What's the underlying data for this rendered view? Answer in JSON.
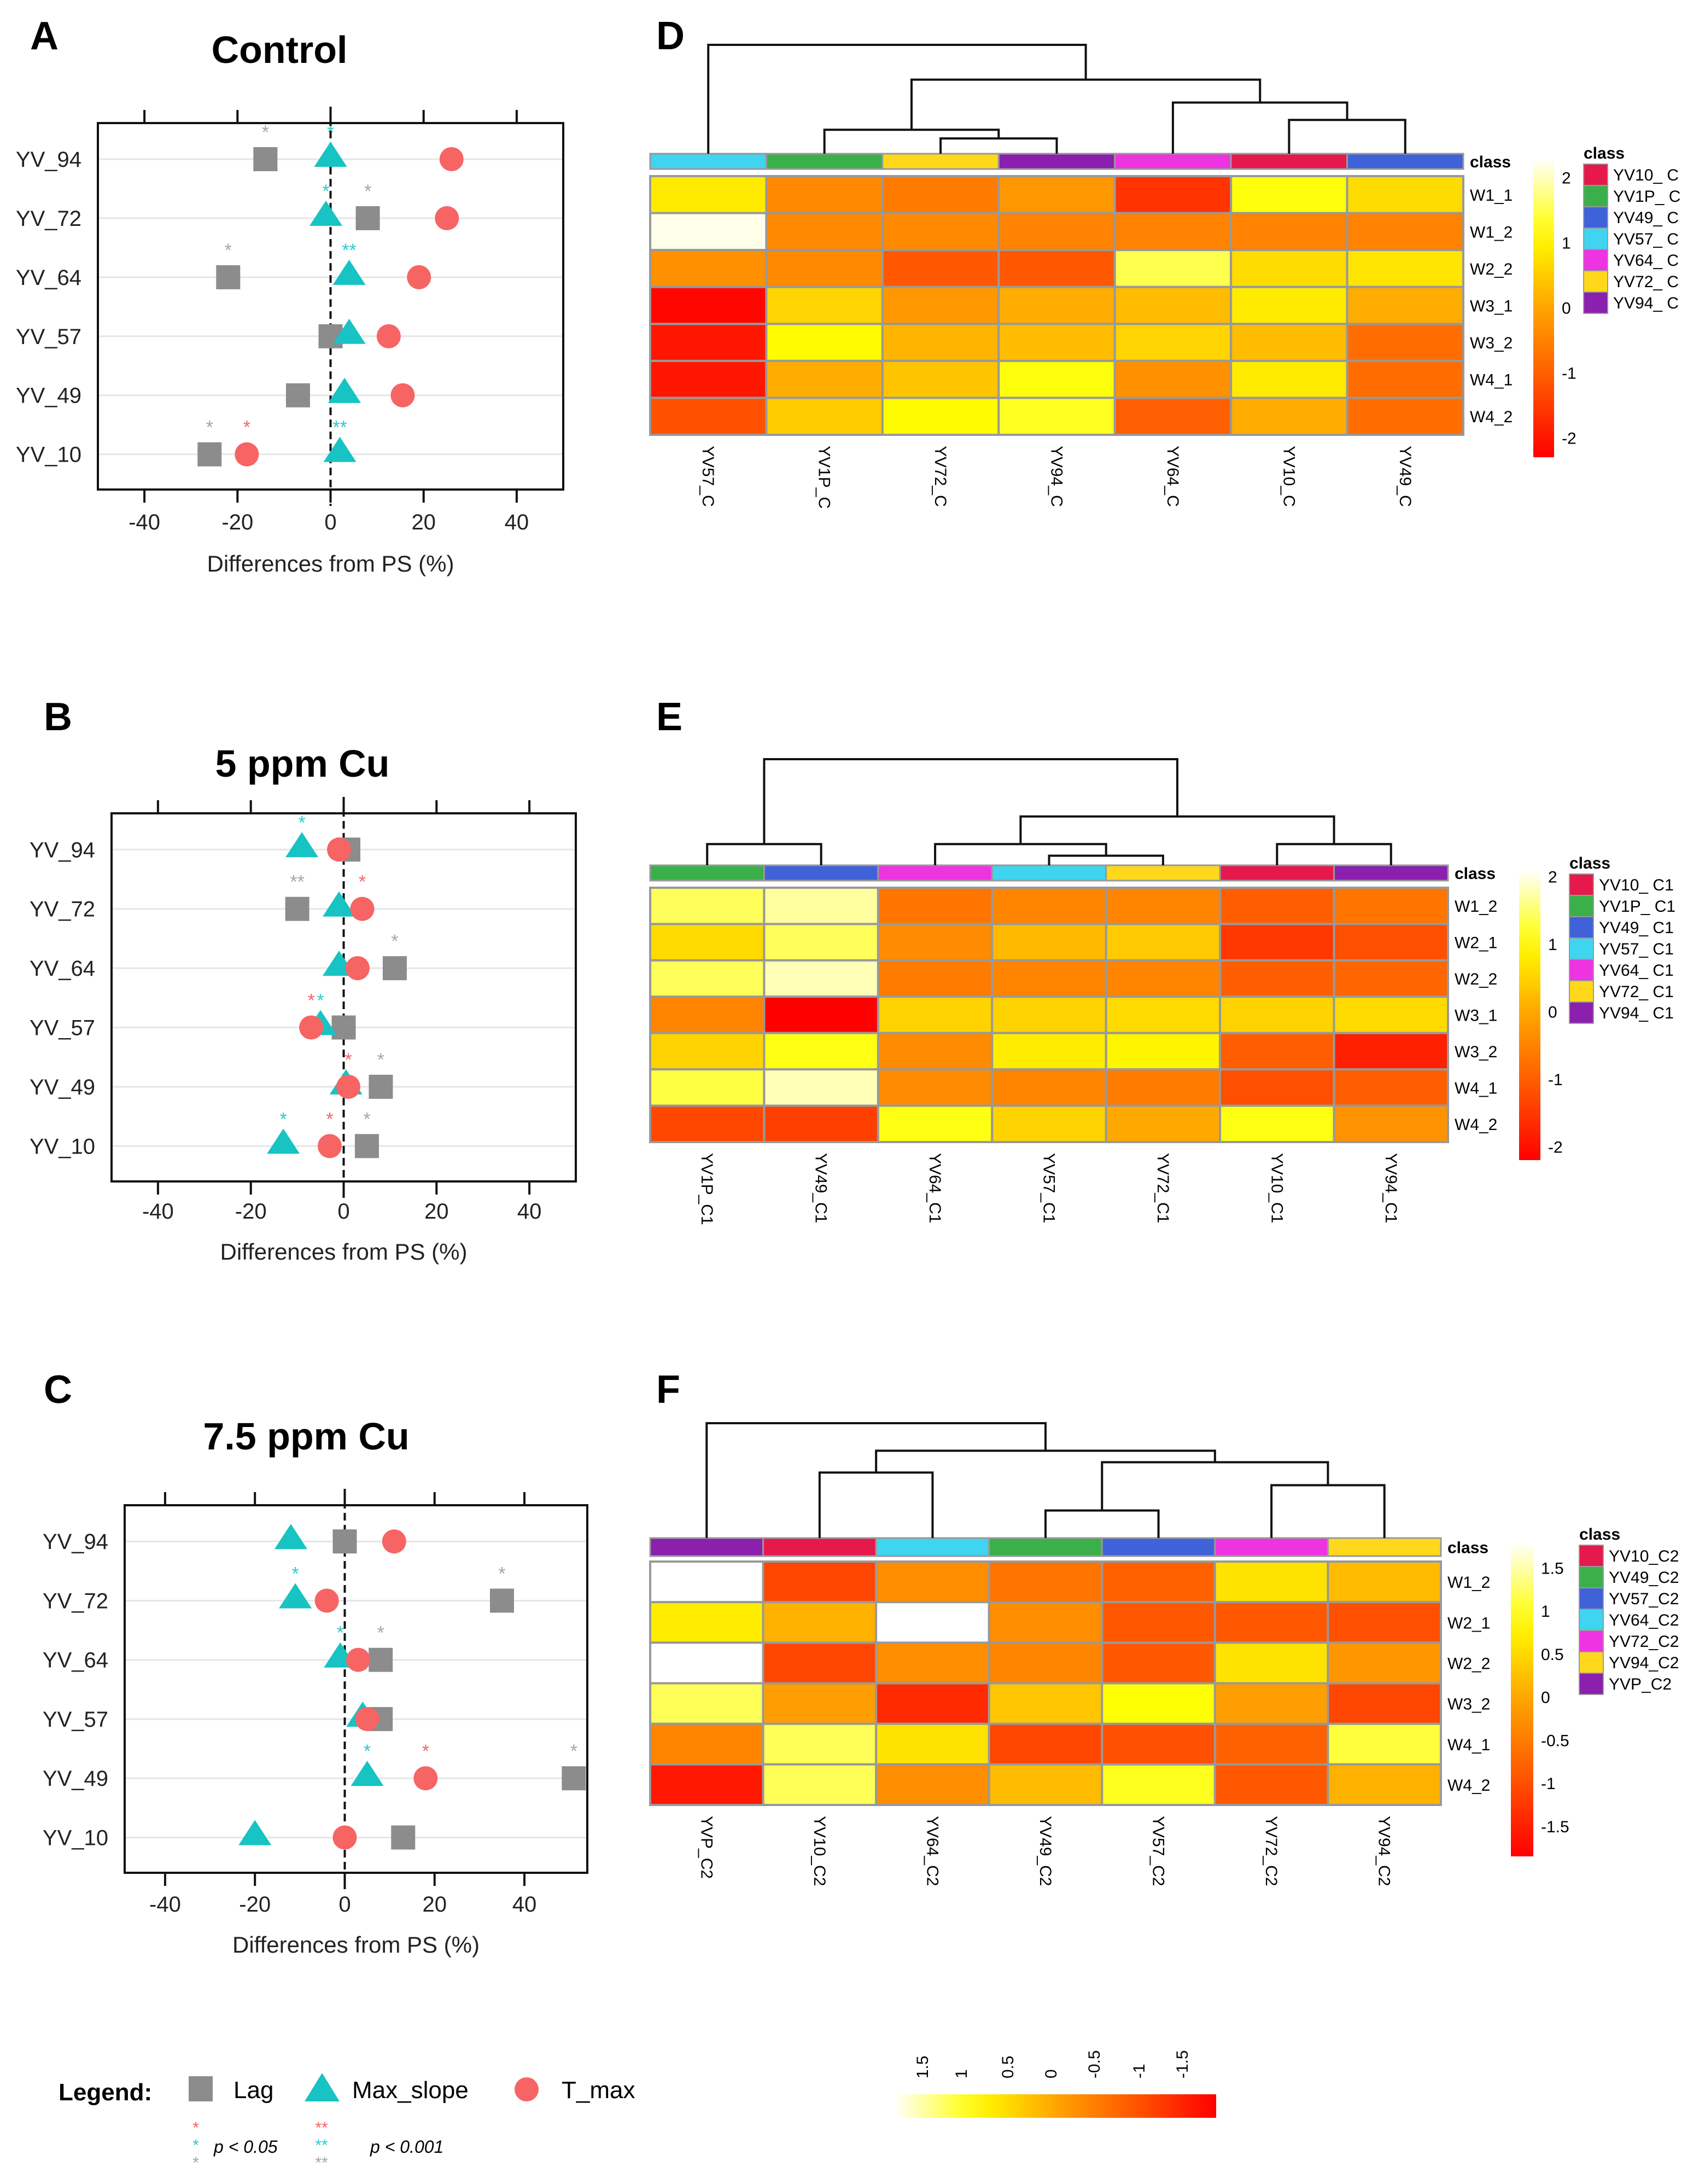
{
  "chart_data": [
    {
      "type": "scatter",
      "panel": "A",
      "title": "Control",
      "xlabel": "Differences from PS (%)",
      "xlim": [
        -50,
        50
      ],
      "xticks": [
        "-40",
        "-20",
        "0",
        "20",
        "40"
      ],
      "tick_values": [
        -40,
        -20,
        0,
        20,
        40
      ],
      "categories": [
        "YV_94",
        "YV_72",
        "YV_64",
        "YV_57",
        "YV_49",
        "YV_10"
      ],
      "series": [
        {
          "name": "Lag",
          "values": [
            -14,
            8,
            -22,
            0,
            -7,
            -26
          ],
          "sig": [
            "*",
            "*",
            "*",
            "",
            "",
            "*"
          ]
        },
        {
          "name": "Max_slope",
          "values": [
            0,
            -1,
            4,
            4,
            3,
            2
          ],
          "sig": [
            "*",
            "*",
            "**",
            "",
            "",
            "**"
          ]
        },
        {
          "name": "T_max",
          "values": [
            26,
            25,
            19,
            12.5,
            15.5,
            -18
          ],
          "sig": [
            "",
            "",
            "",
            "",
            "",
            "*"
          ]
        }
      ]
    },
    {
      "type": "scatter",
      "panel": "B",
      "title": "5 ppm Cu",
      "xlabel": "Differences from PS (%)",
      "xlim": [
        -50,
        50
      ],
      "xticks": [
        "-40",
        "-20",
        "0",
        "20",
        "40"
      ],
      "tick_values": [
        -40,
        -20,
        0,
        20,
        40
      ],
      "categories": [
        "YV_94",
        "YV_72",
        "YV_64",
        "YV_57",
        "YV_49",
        "YV_10"
      ],
      "series": [
        {
          "name": "Lag",
          "values": [
            1,
            -10,
            11,
            0,
            8,
            5
          ],
          "sig": [
            "",
            "**",
            "*",
            "",
            "*",
            "*"
          ]
        },
        {
          "name": "Max_slope",
          "values": [
            -9,
            -1,
            -1,
            -5,
            0.5,
            -13
          ],
          "sig": [
            "*",
            "",
            "",
            "*",
            "",
            "*"
          ]
        },
        {
          "name": "T_max",
          "values": [
            -1,
            4,
            3,
            -7,
            1,
            -3
          ],
          "sig": [
            "",
            "*",
            "",
            "*",
            "*",
            "*"
          ]
        }
      ]
    },
    {
      "type": "scatter",
      "panel": "C",
      "title": "7.5 ppm Cu",
      "xlabel": "Differences from PS (%)",
      "xlim": [
        -49,
        54
      ],
      "xticks": [
        "-40",
        "-20",
        "0",
        "20",
        "40"
      ],
      "tick_values": [
        -40,
        -20,
        0,
        20,
        40
      ],
      "categories": [
        "YV_94",
        "YV_72",
        "YV_64",
        "YV_57",
        "YV_49",
        "YV_10"
      ],
      "series": [
        {
          "name": "Lag",
          "values": [
            0,
            35,
            8,
            8,
            51,
            13
          ],
          "sig": [
            "",
            "*",
            "*",
            "",
            "*",
            ""
          ]
        },
        {
          "name": "Max_slope",
          "values": [
            -12,
            -11,
            -1,
            4,
            5,
            -20
          ],
          "sig": [
            "",
            "*",
            "*",
            "",
            "*",
            ""
          ]
        },
        {
          "name": "T_max",
          "values": [
            11,
            -4,
            3,
            5,
            18,
            0
          ],
          "sig": [
            "",
            "",
            "",
            "",
            "*",
            ""
          ]
        }
      ]
    },
    {
      "type": "heatmap",
      "panel": "D",
      "columns": [
        "YV57_C",
        "YV1P_C",
        "YV72_C",
        "YV94_C",
        "YV64_C",
        "YV10_C",
        "YV49_C"
      ],
      "rows": [
        "W1_1",
        "W1_2",
        "W2_2",
        "W3_1",
        "W3_2",
        "W4_1",
        "W4_2"
      ],
      "values": [
        [
          0.9,
          -0.4,
          -0.6,
          -0.2,
          -1.6,
          1.2,
          0.7
        ],
        [
          2.2,
          -0.4,
          -0.4,
          -0.5,
          -0.5,
          -0.5,
          -0.5
        ],
        [
          -0.3,
          -0.4,
          -1.1,
          -1.1,
          1.5,
          0.7,
          0.8
        ],
        [
          -2.2,
          0.6,
          -0.2,
          0.1,
          0.3,
          0.9,
          0.1
        ],
        [
          -2.0,
          1.1,
          0.2,
          0.3,
          0.6,
          0.3,
          -0.8
        ],
        [
          -2.0,
          0.1,
          0.4,
          1.2,
          -0.3,
          0.9,
          -0.8
        ],
        [
          -1.2,
          0.5,
          1.1,
          1.3,
          -1.0,
          0.1,
          -0.8
        ]
      ],
      "column_class": [
        "YV57_ C",
        "YV1P_ C",
        "YV72_ C",
        "YV94_ C",
        "YV64_ C",
        "YV10_ C",
        "YV49_ C"
      ],
      "class_label": "class",
      "legend_title": "class",
      "legend": [
        {
          "label": "YV10_ C",
          "color": "#e5194b"
        },
        {
          "label": "YV1P_ C",
          "color": "#3bb04a"
        },
        {
          "label": "YV49_ C",
          "color": "#4062d8"
        },
        {
          "label": "YV57_ C",
          "color": "#3fd4f0"
        },
        {
          "label": "YV64_ C",
          "color": "#ee33e0"
        },
        {
          "label": "YV72_ C",
          "color": "#ffd81c"
        },
        {
          "label": "YV94_ C",
          "color": "#8b1fae"
        }
      ],
      "color_range": [
        -2.3,
        2.3
      ],
      "colorbar_ticks": [
        {
          "label": "2",
          "value": 2
        },
        {
          "label": "1",
          "value": 1
        },
        {
          "label": "0",
          "value": 0
        },
        {
          "label": "-1",
          "value": -1
        },
        {
          "label": "-2",
          "value": -2
        }
      ],
      "dendrogram": [
        {
          "a": 2,
          "b": 3,
          "h": 0.14
        },
        {
          "a": 1,
          "b": "m0",
          "h": 0.22
        },
        {
          "a": 5,
          "b": 6,
          "h": 0.31
        },
        {
          "a": 4,
          "b": "m2",
          "h": 0.47
        },
        {
          "a": "m1",
          "b": "m3",
          "h": 0.68
        },
        {
          "a": 0,
          "b": "m4",
          "h": 1.0
        }
      ]
    },
    {
      "type": "heatmap",
      "panel": "E",
      "columns": [
        "YV1P_C1",
        "YV49_C1",
        "YV64_C1",
        "YV57_C1",
        "YV72_C1",
        "YV10_C1",
        "YV94_C1"
      ],
      "rows": [
        "W1_2",
        "W2_1",
        "W2_2",
        "W3_1",
        "W3_2",
        "W4_1",
        "W4_2"
      ],
      "values": [
        [
          1.4,
          1.7,
          -0.7,
          -0.5,
          -0.5,
          -1.0,
          -0.7
        ],
        [
          0.6,
          1.4,
          -0.4,
          0.2,
          0.4,
          -1.5,
          -1.2
        ],
        [
          1.4,
          1.8,
          -0.6,
          -0.5,
          -0.5,
          -1.0,
          -0.9
        ],
        [
          -0.5,
          -2.3,
          0.5,
          0.5,
          0.6,
          0.5,
          0.6
        ],
        [
          0.5,
          1.1,
          -0.4,
          0.8,
          0.9,
          -1.0,
          -1.8
        ],
        [
          1.3,
          1.8,
          -0.4,
          -0.5,
          -0.6,
          -1.2,
          -1.0
        ],
        [
          -1.3,
          -1.4,
          1.1,
          0.5,
          0.0,
          1.1,
          -0.3
        ]
      ],
      "column_class": [
        "YV1P_ C1",
        "YV49_ C1",
        "YV64_ C1",
        "YV57_ C1",
        "YV72_ C1",
        "YV10_ C1",
        "YV94_ C1"
      ],
      "class_label": "class",
      "legend_title": "class",
      "legend": [
        {
          "label": "YV10_ C1",
          "color": "#e5194b"
        },
        {
          "label": "YV1P_ C1",
          "color": "#3bb04a"
        },
        {
          "label": "YV49_ C1",
          "color": "#4062d8"
        },
        {
          "label": "YV57_ C1",
          "color": "#3fd4f0"
        },
        {
          "label": "YV64_ C1",
          "color": "#ee33e0"
        },
        {
          "label": "YV72_ C1",
          "color": "#ffd81c"
        },
        {
          "label": "YV94_ C1",
          "color": "#8b1fae"
        }
      ],
      "color_range": [
        -2.2,
        2.1
      ],
      "colorbar_ticks": [
        {
          "label": "2",
          "value": 2
        },
        {
          "label": "1",
          "value": 1
        },
        {
          "label": "0",
          "value": 0
        },
        {
          "label": "-1",
          "value": -1
        },
        {
          "label": "-2",
          "value": -2
        }
      ],
      "dendrogram": [
        {
          "a": 0,
          "b": 1,
          "h": 0.2
        },
        {
          "a": 3,
          "b": 4,
          "h": 0.09
        },
        {
          "a": 2,
          "b": "m1",
          "h": 0.2
        },
        {
          "a": 5,
          "b": 6,
          "h": 0.2
        },
        {
          "a": "m2",
          "b": "m3",
          "h": 0.46
        },
        {
          "a": "m0",
          "b": "m4",
          "h": 1.0
        }
      ]
    },
    {
      "type": "heatmap",
      "panel": "F",
      "columns": [
        "YVP_C2",
        "YV10_C2",
        "YV64_C2",
        "YV49_C2",
        "YV57_C2",
        "YV72_C2",
        "YV94_C2"
      ],
      "rows": [
        "W1_2",
        "W2_1",
        "W2_2",
        "W3_2",
        "W4_1",
        "W4_2"
      ],
      "values": [
        [
          1.8,
          -1.1,
          -0.3,
          -0.6,
          -0.8,
          0.6,
          0.2
        ],
        [
          0.7,
          0.1,
          1.8,
          -0.3,
          -0.9,
          -0.9,
          -1.0
        ],
        [
          1.8,
          -1.1,
          -0.3,
          -0.4,
          -0.9,
          0.6,
          -0.2
        ],
        [
          1.2,
          -0.1,
          -1.4,
          0.3,
          0.9,
          -0.1,
          -1.1
        ],
        [
          -0.4,
          1.2,
          0.6,
          -1.1,
          -1.0,
          -0.8,
          1.1
        ],
        [
          -1.6,
          1.2,
          -0.3,
          0.2,
          1.0,
          -0.9,
          0.1
        ]
      ],
      "column_class": [
        "YVP_C2",
        "YV10_C2",
        "YV64_C2",
        "YV49_C2",
        "YV57_C2",
        "YV72_C2",
        "YV94_C2"
      ],
      "class_label": "class",
      "legend_title": "class",
      "legend": [
        {
          "label": "YV10_C2",
          "color": "#e5194b"
        },
        {
          "label": "YV49_C2",
          "color": "#3bb04a"
        },
        {
          "label": "YV57_C2",
          "color": "#4062d8"
        },
        {
          "label": "YV64_C2",
          "color": "#3fd4f0"
        },
        {
          "label": "YV72_C2",
          "color": "#ee33e0"
        },
        {
          "label": "YV94_C2",
          "color": "#ffd81c"
        },
        {
          "label": "YVP_C2",
          "color": "#8b1fae"
        }
      ],
      "color_range": [
        -1.85,
        1.8
      ],
      "colorbar_ticks": [
        {
          "label": "1.5",
          "value": 1.5
        },
        {
          "label": "1",
          "value": 1
        },
        {
          "label": "0.5",
          "value": 0.5
        },
        {
          "label": "0",
          "value": 0
        },
        {
          "label": "-0.5",
          "value": -0.5
        },
        {
          "label": "-1",
          "value": -1
        },
        {
          "label": "-1.5",
          "value": -1.5
        }
      ],
      "dendrogram": [
        {
          "a": 1,
          "b": 2,
          "h": 0.57
        },
        {
          "a": 3,
          "b": 4,
          "h": 0.24
        },
        {
          "a": 5,
          "b": 6,
          "h": 0.46
        },
        {
          "a": "m1",
          "b": "m2",
          "h": 0.66
        },
        {
          "a": "m0",
          "b": "m3",
          "h": 0.76
        },
        {
          "a": 0,
          "b": "m4",
          "h": 1.0
        }
      ]
    }
  ],
  "legend": {
    "title": "Legend:",
    "items": [
      {
        "label": "Lag",
        "shape": "square",
        "color": "#8c8c8c"
      },
      {
        "label": "Max_slope",
        "shape": "triangle",
        "color": "#17c3c3"
      },
      {
        "label": "T_max",
        "shape": "circle",
        "color": "#f76464"
      }
    ],
    "sig_single": "*",
    "sig_double": "**",
    "p05": "p < 0.05",
    "p001": "p < 0.001",
    "gradient_ticks": [
      "1.5",
      "1",
      "0.5",
      "0",
      "-0.5",
      "-1",
      "-1.5"
    ]
  },
  "colors": {
    "Lag": "#8c8c8c",
    "Max_slope": "#17c3c3",
    "T_max": "#f76464",
    "star_Lag": "#a6a6a6",
    "star_Max_slope": "#2ccbd0",
    "star_T_max": "#f76464"
  }
}
